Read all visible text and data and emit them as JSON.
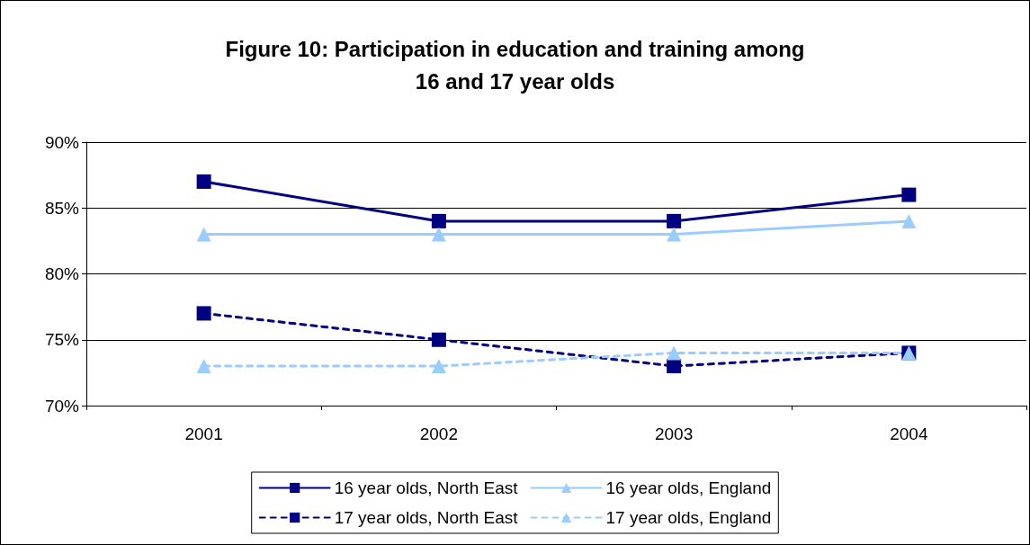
{
  "chart_data": {
    "type": "line",
    "title": "Figure 10: Participation in education and training among\n16 and 17 year olds",
    "categories": [
      "2001",
      "2002",
      "2003",
      "2004"
    ],
    "series": [
      {
        "name": "16 year olds, North East",
        "color": "#000080",
        "marker": "square",
        "line_style": "solid",
        "values": [
          87,
          84,
          84,
          86
        ]
      },
      {
        "name": "16 year olds, England",
        "color": "#99ccff",
        "marker": "triangle",
        "line_style": "solid",
        "values": [
          83,
          83,
          83,
          84
        ]
      },
      {
        "name": "17 year olds, North East",
        "color": "#000080",
        "marker": "square",
        "line_style": "dashed",
        "values": [
          77,
          75,
          73,
          74
        ]
      },
      {
        "name": "17 year olds, England",
        "color": "#99ccff",
        "marker": "triangle",
        "line_style": "dashed",
        "values": [
          73,
          73,
          74,
          74
        ]
      }
    ],
    "ylim": [
      70,
      90
    ],
    "yticks": [
      {
        "value": 70,
        "label": "70%"
      },
      {
        "value": 75,
        "label": "75%"
      },
      {
        "value": 80,
        "label": "80%"
      },
      {
        "value": 85,
        "label": "85%"
      },
      {
        "value": 90,
        "label": "90%"
      }
    ],
    "grid": "y",
    "legend": "bottom"
  }
}
